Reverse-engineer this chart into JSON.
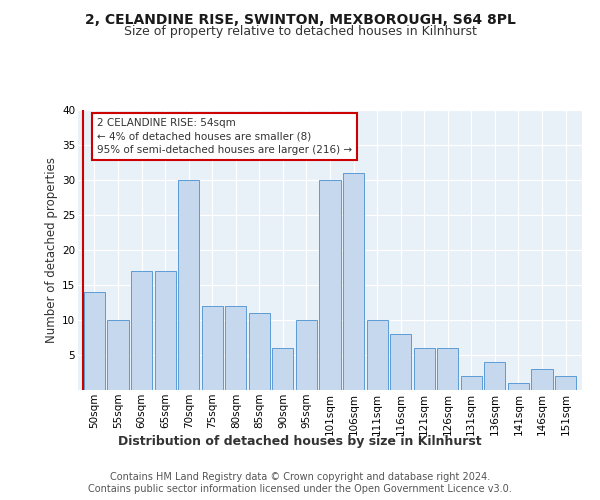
{
  "title1": "2, CELANDINE RISE, SWINTON, MEXBOROUGH, S64 8PL",
  "title2": "Size of property relative to detached houses in Kilnhurst",
  "xlabel": "Distribution of detached houses by size in Kilnhurst",
  "ylabel": "Number of detached properties",
  "categories": [
    "50sqm",
    "55sqm",
    "60sqm",
    "65sqm",
    "70sqm",
    "75sqm",
    "80sqm",
    "85sqm",
    "90sqm",
    "95sqm",
    "101sqm",
    "106sqm",
    "111sqm",
    "116sqm",
    "121sqm",
    "126sqm",
    "131sqm",
    "136sqm",
    "141sqm",
    "146sqm",
    "151sqm"
  ],
  "values": [
    14,
    10,
    17,
    17,
    30,
    12,
    12,
    11,
    6,
    10,
    30,
    31,
    10,
    8,
    6,
    6,
    2,
    4,
    1,
    3,
    2
  ],
  "bar_color": "#c5d8ed",
  "bar_edge_color": "#5b9bd5",
  "annotation_text": "2 CELANDINE RISE: 54sqm\n← 4% of detached houses are smaller (8)\n95% of semi-detached houses are larger (216) →",
  "annotation_box_color": "#ffffff",
  "annotation_box_edge_color": "#cc0000",
  "redline_color": "#cc0000",
  "ylim": [
    0,
    40
  ],
  "yticks": [
    0,
    5,
    10,
    15,
    20,
    25,
    30,
    35,
    40
  ],
  "footer1": "Contains HM Land Registry data © Crown copyright and database right 2024.",
  "footer2": "Contains public sector information licensed under the Open Government Licence v3.0.",
  "bg_color": "#e8f0f8",
  "fig_bg_color": "#ffffff",
  "title1_fontsize": 10,
  "title2_fontsize": 9,
  "xlabel_fontsize": 9,
  "ylabel_fontsize": 8.5,
  "footer_fontsize": 7,
  "tick_fontsize": 7.5,
  "annotation_fontsize": 7.5
}
